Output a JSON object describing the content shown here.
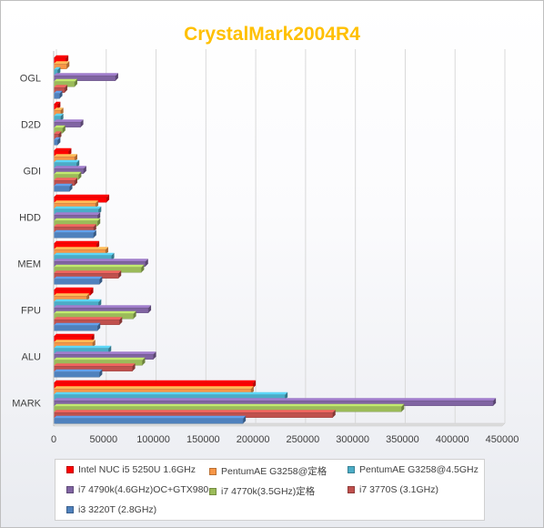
{
  "chart_data": {
    "type": "bar",
    "orientation": "horizontal",
    "title": "CrystalMark2004R4",
    "title_color": "#ffc000",
    "categories": [
      "MARK",
      "ALU",
      "FPU",
      "MEM",
      "HDD",
      "GDI",
      "D2D",
      "OGL"
    ],
    "xlim": [
      0,
      450000
    ],
    "xticks": [
      0,
      50000,
      100000,
      150000,
      200000,
      250000,
      300000,
      350000,
      400000,
      450000
    ],
    "grid": "vertical",
    "legend_position": "bottom",
    "series": [
      {
        "name": "Intel NUC i5 5250U 1.6GHz",
        "color": "#ff0000",
        "values": [
          200000,
          38000,
          37000,
          43000,
          53000,
          15000,
          4000,
          12000
        ]
      },
      {
        "name": "PentumAE  G3258@定格",
        "color": "#f79646",
        "values": [
          198000,
          39000,
          33000,
          52000,
          42000,
          21000,
          7000,
          13000
        ]
      },
      {
        "name": "PentumAE   G3258@4.5GHz",
        "color": "#4bacc6",
        "values": [
          232000,
          55000,
          45000,
          58000,
          45000,
          23000,
          7000,
          4000
        ]
      },
      {
        "name": "i7 4790k(4.6GHz)OC+GTX980",
        "color": "#8064a2",
        "values": [
          441000,
          100000,
          95000,
          92000,
          44000,
          30000,
          27000,
          62000
        ]
      },
      {
        "name": "i7 4770k(3.5GHz)定格",
        "color": "#9bbb59",
        "values": [
          349000,
          89000,
          80000,
          88000,
          44000,
          25000,
          9000,
          21000
        ]
      },
      {
        "name": "i7 3770S (3.1GHz)",
        "color": "#c0504d",
        "values": [
          280000,
          79000,
          66000,
          65000,
          40000,
          21000,
          5000,
          11000
        ]
      },
      {
        "name": "i3 3220T (2.8GHz)",
        "color": "#4f81bd",
        "values": [
          190000,
          46000,
          44000,
          46000,
          40000,
          16000,
          4000,
          6000
        ]
      }
    ]
  }
}
